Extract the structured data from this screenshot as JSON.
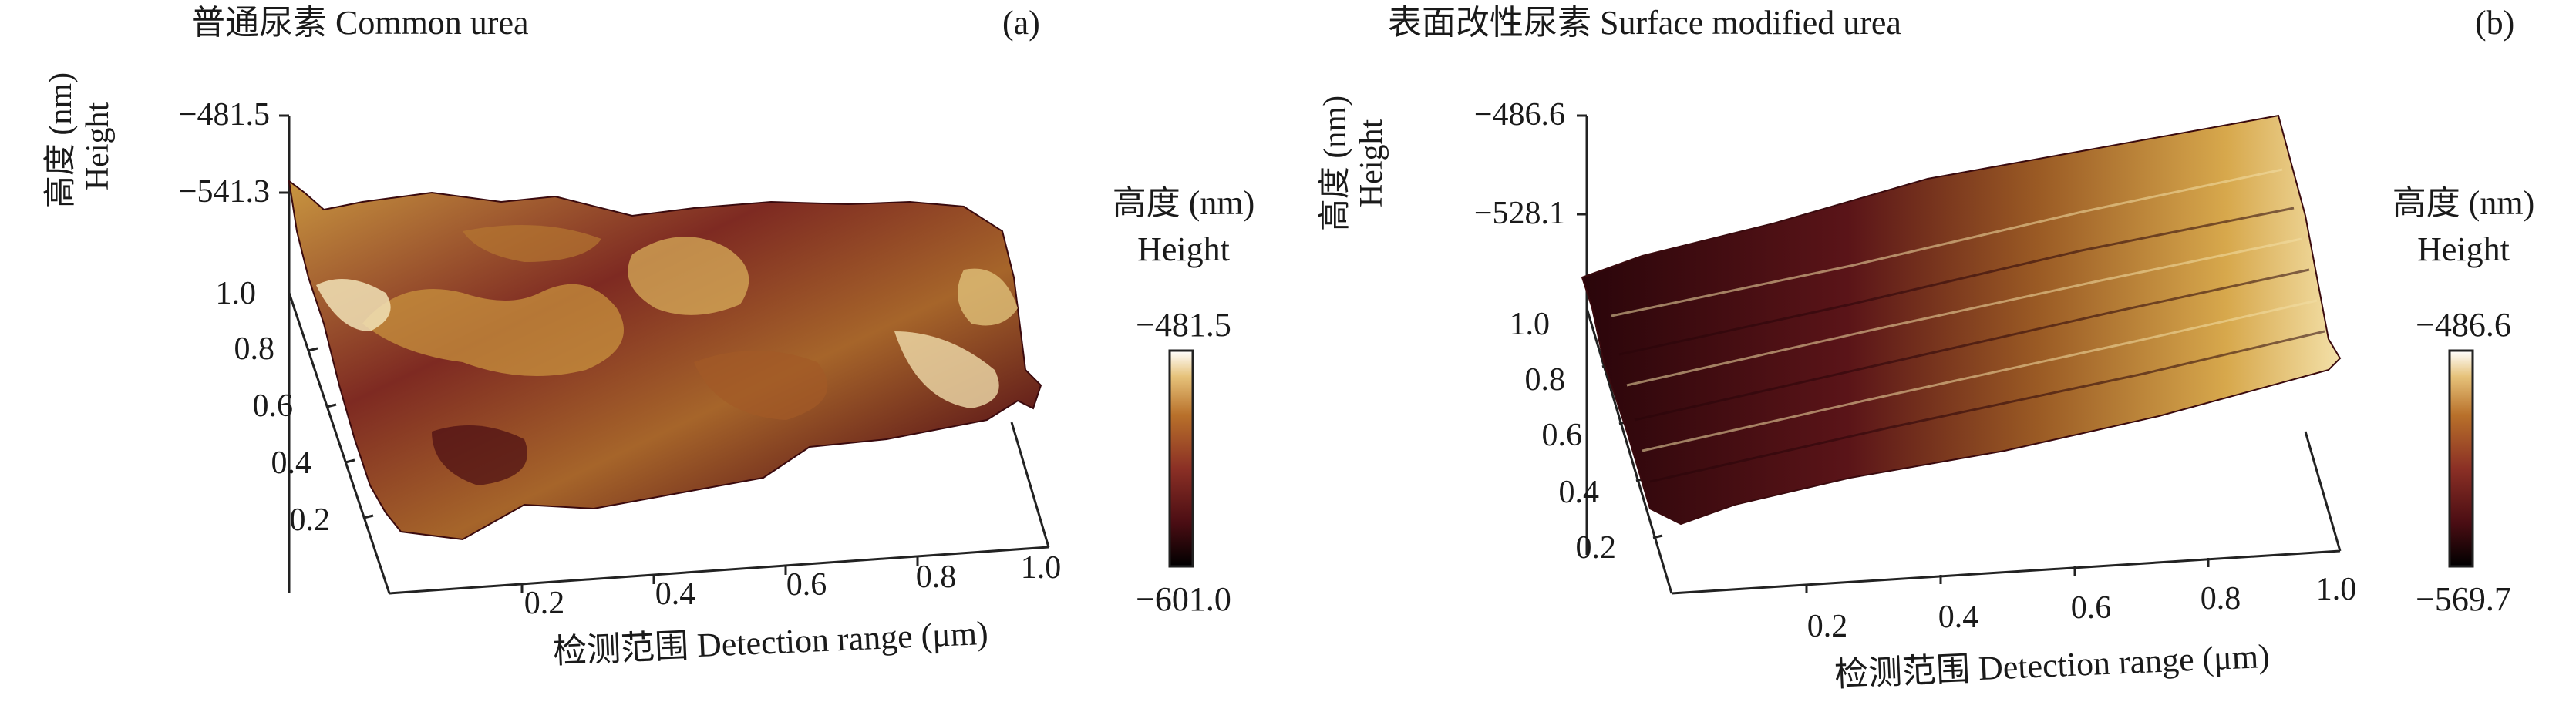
{
  "chart_data": [
    {
      "type": "heatmap",
      "title": "普通尿素 Common urea",
      "panel_label": "(a)",
      "zlabel_cn": "高度 (nm)",
      "zlabel_en": "Height",
      "xlabel": "检测范围 Detection range (μm)",
      "xticks": [
        "0.2",
        "0.4",
        "0.6",
        "0.8",
        "1.0"
      ],
      "yticks": [
        "0.2",
        "0.4",
        "0.6",
        "0.8",
        "1.0"
      ],
      "zticks": [
        "−481.5",
        "−541.3"
      ],
      "zlim": [
        -601.0,
        -481.5
      ],
      "colorbar_title_cn": "高度 (nm)",
      "colorbar_title_en": "Height",
      "colorbar_max": "−481.5",
      "colorbar_min": "−601.0",
      "colormap": [
        "#000000",
        "#4a0d13",
        "#8a2f25",
        "#b8702a",
        "#e6c27a",
        "#ffffff"
      ]
    },
    {
      "type": "heatmap",
      "title": "表面改性尿素 Surface modified urea",
      "panel_label": "(b)",
      "zlabel_cn": "高度 (nm)",
      "zlabel_en": "Height",
      "xlabel": "检测范围 Detection range (μm)",
      "xticks": [
        "0.2",
        "0.4",
        "0.6",
        "0.8",
        "1.0"
      ],
      "yticks": [
        "0.2",
        "0.4",
        "0.6",
        "0.8",
        "1.0"
      ],
      "zticks": [
        "−486.6",
        "−528.1"
      ],
      "zlim": [
        -569.7,
        -486.6
      ],
      "colorbar_title_cn": "高度 (nm)",
      "colorbar_title_en": "Height",
      "colorbar_max": "−486.6",
      "colorbar_min": "−569.7",
      "colormap": [
        "#000000",
        "#4a0d13",
        "#8a2f25",
        "#b8702a",
        "#e6c27a",
        "#ffffff"
      ]
    }
  ]
}
